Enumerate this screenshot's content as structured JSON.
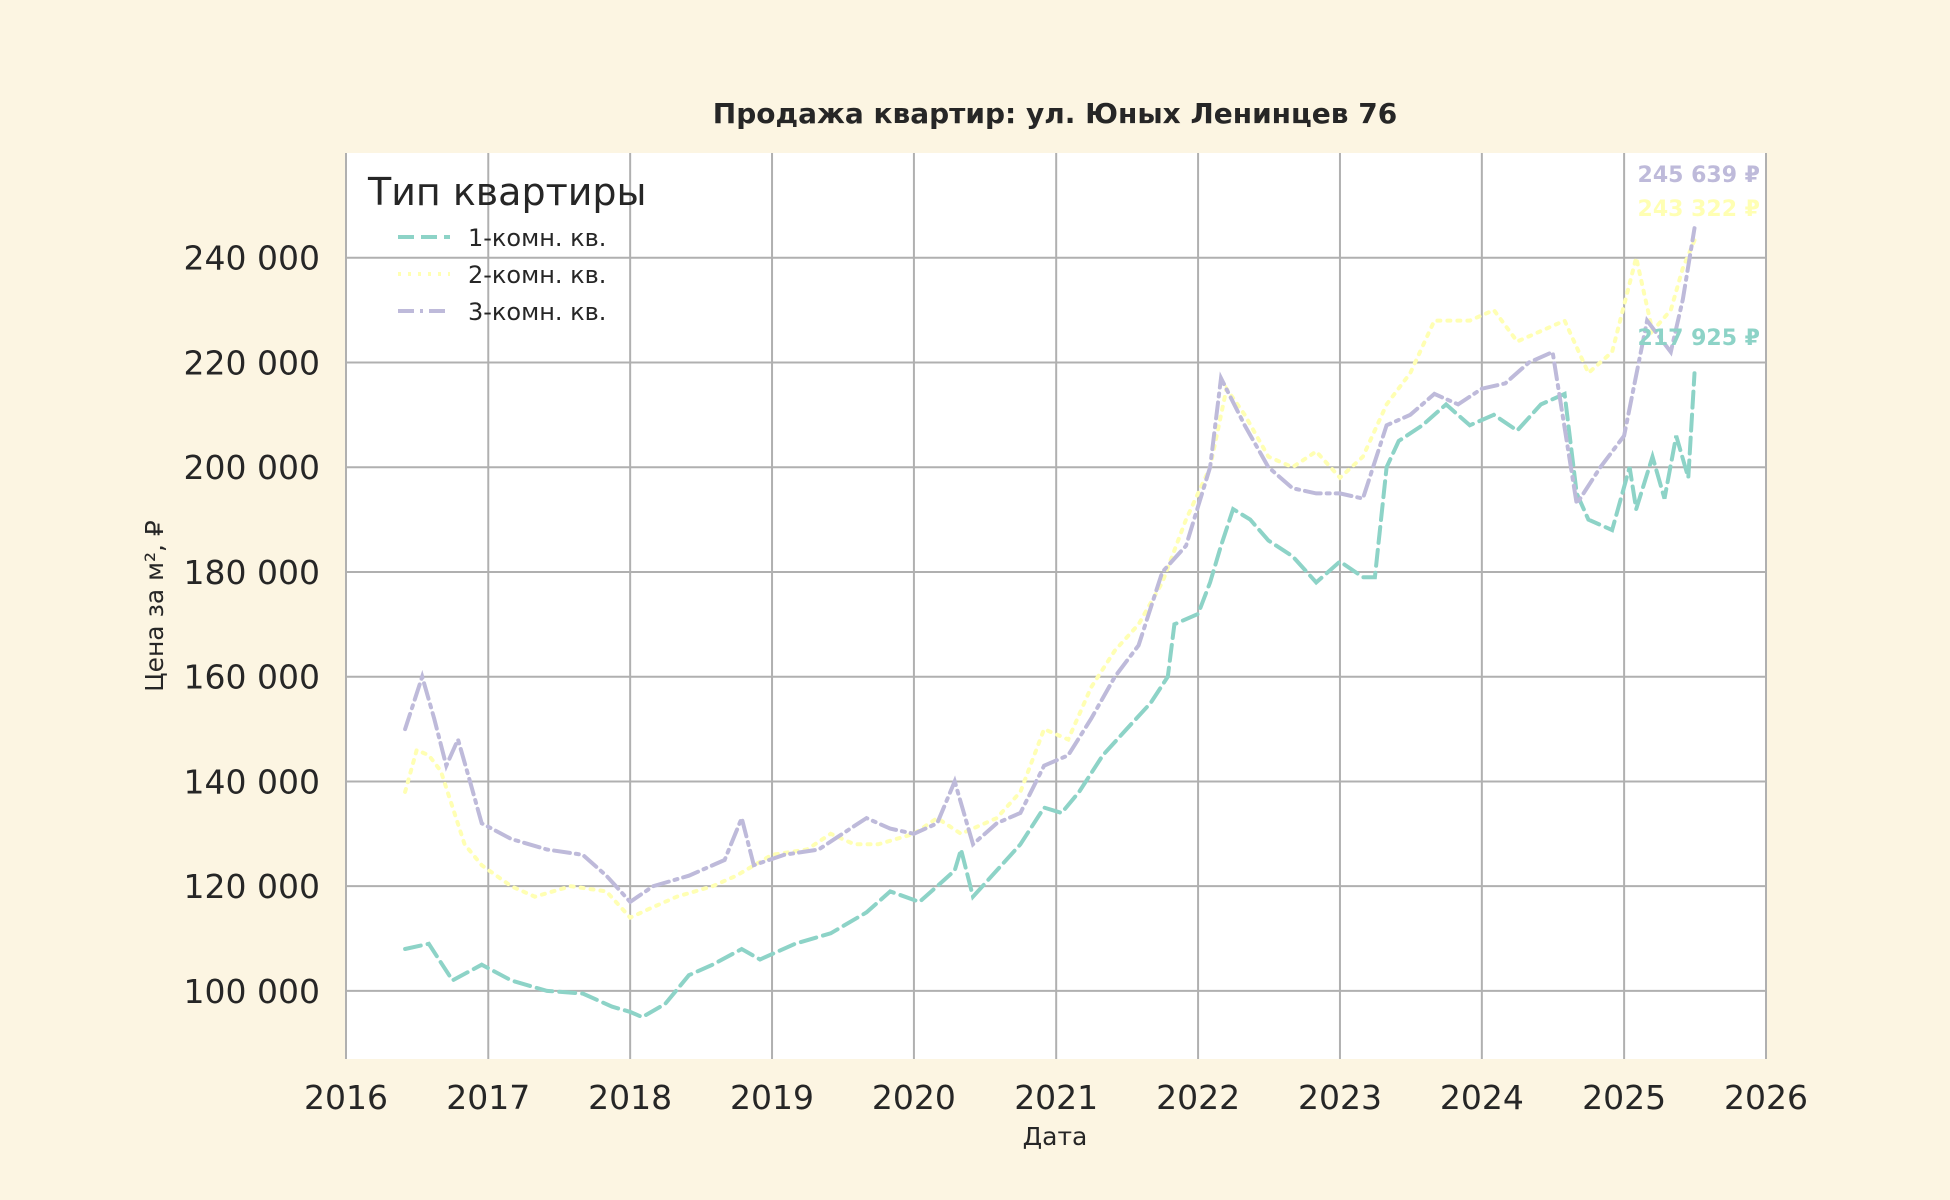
{
  "chart_data": {
    "type": "line",
    "title": "Продажа квартир: ул. Юных Ленинцев 76",
    "xlabel": "Дата",
    "ylabel": "Цена за м², ₽",
    "xlim": [
      "2016-01-01",
      "2026-01-01"
    ],
    "ylim": [
      87000,
      260000
    ],
    "x_ticks": [
      "2016",
      "2017",
      "2018",
      "2019",
      "2020",
      "2021",
      "2022",
      "2023",
      "2024",
      "2025",
      "2026"
    ],
    "y_ticks": [
      100000,
      120000,
      140000,
      160000,
      180000,
      200000,
      220000,
      240000
    ],
    "y_tick_labels": [
      "100 000",
      "120 000",
      "140 000",
      "160 000",
      "180 000",
      "200 000",
      "220 000",
      "240 000"
    ],
    "grid": true,
    "legend": {
      "title": "Тип квартиры",
      "placement": "top-left"
    },
    "series": [
      {
        "name": "1-комн. кв.",
        "color": "#8dd3c7",
        "style": "dashed",
        "end_label": "217 925 ₽",
        "points": [
          [
            "2016-06-01",
            108000
          ],
          [
            "2016-08-01",
            109000
          ],
          [
            "2016-10-01",
            102000
          ],
          [
            "2016-12-15",
            105000
          ],
          [
            "2017-03-01",
            102000
          ],
          [
            "2017-06-01",
            100000
          ],
          [
            "2017-09-01",
            99500
          ],
          [
            "2017-11-15",
            97000
          ],
          [
            "2018-01-01",
            96000
          ],
          [
            "2018-02-01",
            95000
          ],
          [
            "2018-04-01",
            97500
          ],
          [
            "2018-06-01",
            103000
          ],
          [
            "2018-08-01",
            105000
          ],
          [
            "2018-10-15",
            108000
          ],
          [
            "2018-12-01",
            106000
          ],
          [
            "2019-03-01",
            109000
          ],
          [
            "2019-06-01",
            111000
          ],
          [
            "2019-09-01",
            115000
          ],
          [
            "2019-11-01",
            119000
          ],
          [
            "2020-01-15",
            117000
          ],
          [
            "2020-03-01",
            120000
          ],
          [
            "2020-04-15",
            123000
          ],
          [
            "2020-05-01",
            127000
          ],
          [
            "2020-06-01",
            118000
          ],
          [
            "2020-08-01",
            123000
          ],
          [
            "2020-10-01",
            128000
          ],
          [
            "2020-12-01",
            135000
          ],
          [
            "2021-01-15",
            134000
          ],
          [
            "2021-03-01",
            138000
          ],
          [
            "2021-05-01",
            145000
          ],
          [
            "2021-07-01",
            150000
          ],
          [
            "2021-09-01",
            155000
          ],
          [
            "2021-10-15",
            160000
          ],
          [
            "2021-11-01",
            170000
          ],
          [
            "2022-01-01",
            172000
          ],
          [
            "2022-02-01",
            178000
          ],
          [
            "2022-03-01",
            185000
          ],
          [
            "2022-04-01",
            192000
          ],
          [
            "2022-05-15",
            190000
          ],
          [
            "2022-07-01",
            186000
          ],
          [
            "2022-09-01",
            183000
          ],
          [
            "2022-11-01",
            178000
          ],
          [
            "2023-01-01",
            182000
          ],
          [
            "2023-03-01",
            179000
          ],
          [
            "2023-04-01",
            179000
          ],
          [
            "2023-05-01",
            200000
          ],
          [
            "2023-06-01",
            205000
          ],
          [
            "2023-08-01",
            208000
          ],
          [
            "2023-10-01",
            212000
          ],
          [
            "2023-12-01",
            208000
          ],
          [
            "2024-02-01",
            210000
          ],
          [
            "2024-04-01",
            207000
          ],
          [
            "2024-06-01",
            212000
          ],
          [
            "2024-08-01",
            214000
          ],
          [
            "2024-09-01",
            195000
          ],
          [
            "2024-10-01",
            190000
          ],
          [
            "2024-12-01",
            188000
          ],
          [
            "2025-01-15",
            200000
          ],
          [
            "2025-02-01",
            192000
          ],
          [
            "2025-03-15",
            202000
          ],
          [
            "2025-04-15",
            194000
          ],
          [
            "2025-05-15",
            206000
          ],
          [
            "2025-06-15",
            198000
          ],
          [
            "2025-07-01",
            217925
          ]
        ]
      },
      {
        "name": "2-комн. кв.",
        "color": "#ffffb3",
        "style": "dotted",
        "end_label": "243 322 ₽",
        "points": [
          [
            "2016-06-01",
            138000
          ],
          [
            "2016-07-01",
            146000
          ],
          [
            "2016-08-01",
            145000
          ],
          [
            "2016-09-01",
            142000
          ],
          [
            "2016-11-01",
            128000
          ],
          [
            "2016-12-15",
            124000
          ],
          [
            "2017-03-01",
            120000
          ],
          [
            "2017-05-01",
            118000
          ],
          [
            "2017-08-01",
            120000
          ],
          [
            "2017-11-01",
            119000
          ],
          [
            "2018-01-01",
            114000
          ],
          [
            "2018-03-01",
            116000
          ],
          [
            "2018-05-01",
            118000
          ],
          [
            "2018-08-01",
            120000
          ],
          [
            "2018-10-01",
            122000
          ],
          [
            "2019-01-01",
            126000
          ],
          [
            "2019-04-01",
            127000
          ],
          [
            "2019-06-01",
            130000
          ],
          [
            "2019-08-01",
            128000
          ],
          [
            "2019-10-01",
            128000
          ],
          [
            "2020-01-01",
            130000
          ],
          [
            "2020-03-01",
            133000
          ],
          [
            "2020-05-01",
            130000
          ],
          [
            "2020-08-01",
            133000
          ],
          [
            "2020-10-01",
            138000
          ],
          [
            "2020-12-01",
            150000
          ],
          [
            "2021-02-01",
            148000
          ],
          [
            "2021-04-01",
            158000
          ],
          [
            "2021-06-01",
            165000
          ],
          [
            "2021-08-01",
            170000
          ],
          [
            "2021-10-01",
            178000
          ],
          [
            "2021-12-01",
            190000
          ],
          [
            "2022-02-01",
            200000
          ],
          [
            "2022-03-15",
            215000
          ],
          [
            "2022-05-01",
            210000
          ],
          [
            "2022-07-01",
            202000
          ],
          [
            "2022-09-01",
            200000
          ],
          [
            "2022-11-01",
            203000
          ],
          [
            "2023-01-01",
            198000
          ],
          [
            "2023-03-01",
            202000
          ],
          [
            "2023-05-01",
            212000
          ],
          [
            "2023-07-01",
            218000
          ],
          [
            "2023-09-01",
            228000
          ],
          [
            "2023-12-01",
            228000
          ],
          [
            "2024-02-01",
            230000
          ],
          [
            "2024-04-01",
            224000
          ],
          [
            "2024-06-01",
            226000
          ],
          [
            "2024-08-01",
            228000
          ],
          [
            "2024-10-01",
            218000
          ],
          [
            "2024-12-01",
            222000
          ],
          [
            "2025-02-01",
            240000
          ],
          [
            "2025-03-15",
            226000
          ],
          [
            "2025-05-01",
            230000
          ],
          [
            "2025-06-01",
            238000
          ],
          [
            "2025-07-01",
            243322
          ]
        ]
      },
      {
        "name": "3-комн. кв.",
        "color": "#bebada",
        "style": "dashdot",
        "end_label": "245 639 ₽",
        "points": [
          [
            "2016-06-01",
            150000
          ],
          [
            "2016-07-15",
            160000
          ],
          [
            "2016-08-15",
            152000
          ],
          [
            "2016-09-15",
            143000
          ],
          [
            "2016-10-15",
            148000
          ],
          [
            "2016-11-15",
            140000
          ],
          [
            "2016-12-15",
            132000
          ],
          [
            "2017-03-01",
            129000
          ],
          [
            "2017-06-01",
            127000
          ],
          [
            "2017-09-01",
            126000
          ],
          [
            "2017-11-01",
            122000
          ],
          [
            "2018-01-01",
            117000
          ],
          [
            "2018-03-01",
            120000
          ],
          [
            "2018-06-01",
            122000
          ],
          [
            "2018-09-01",
            125000
          ],
          [
            "2018-10-15",
            133000
          ],
          [
            "2018-11-15",
            124000
          ],
          [
            "2019-02-01",
            126000
          ],
          [
            "2019-05-01",
            127000
          ],
          [
            "2019-07-01",
            130000
          ],
          [
            "2019-09-01",
            133000
          ],
          [
            "2019-11-01",
            131000
          ],
          [
            "2020-01-01",
            130000
          ],
          [
            "2020-03-01",
            132000
          ],
          [
            "2020-04-15",
            140000
          ],
          [
            "2020-06-01",
            128000
          ],
          [
            "2020-08-01",
            132000
          ],
          [
            "2020-10-01",
            134000
          ],
          [
            "2020-12-01",
            143000
          ],
          [
            "2021-02-01",
            145000
          ],
          [
            "2021-04-01",
            152000
          ],
          [
            "2021-06-01",
            160000
          ],
          [
            "2021-08-01",
            166000
          ],
          [
            "2021-10-01",
            180000
          ],
          [
            "2021-12-01",
            185000
          ],
          [
            "2022-02-01",
            200000
          ],
          [
            "2022-03-01",
            217000
          ],
          [
            "2022-05-01",
            208000
          ],
          [
            "2022-07-01",
            200000
          ],
          [
            "2022-09-01",
            196000
          ],
          [
            "2022-11-01",
            195000
          ],
          [
            "2023-01-01",
            195000
          ],
          [
            "2023-03-01",
            194000
          ],
          [
            "2023-05-01",
            208000
          ],
          [
            "2023-07-01",
            210000
          ],
          [
            "2023-09-01",
            214000
          ],
          [
            "2023-11-01",
            212000
          ],
          [
            "2024-01-01",
            215000
          ],
          [
            "2024-03-01",
            216000
          ],
          [
            "2024-05-01",
            220000
          ],
          [
            "2024-07-01",
            222000
          ],
          [
            "2024-09-01",
            193000
          ],
          [
            "2024-11-01",
            200000
          ],
          [
            "2025-01-01",
            206000
          ],
          [
            "2025-03-01",
            228000
          ],
          [
            "2025-05-01",
            222000
          ],
          [
            "2025-06-01",
            232000
          ],
          [
            "2025-07-01",
            245639
          ]
        ]
      }
    ]
  }
}
